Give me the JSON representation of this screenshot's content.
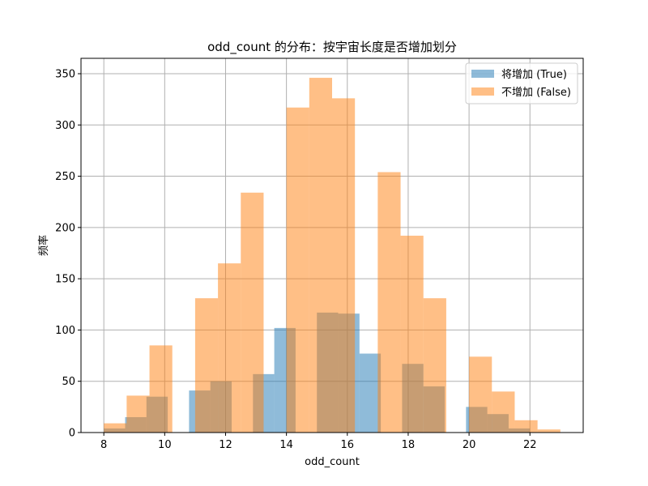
{
  "chart_data": {
    "type": "bar",
    "title": "odd_count 的分布：按宇宙长度是否增加划分",
    "xlabel": "odd_count",
    "ylabel": "频率",
    "xlim": [
      7.25,
      23.75
    ],
    "ylim": [
      0,
      365
    ],
    "xticks": [
      8,
      10,
      12,
      14,
      16,
      18,
      20,
      22
    ],
    "yticks": [
      0,
      50,
      100,
      150,
      200,
      250,
      300,
      350
    ],
    "grid": true,
    "legend_position": "top-right",
    "series": [
      {
        "name": "将增加 (True)",
        "color": "#1f77b4",
        "opacity": 0.5,
        "bins": [
          {
            "x0": 8.0,
            "x1": 8.7,
            "value": 4
          },
          {
            "x0": 8.7,
            "x1": 9.4,
            "value": 15
          },
          {
            "x0": 9.4,
            "x1": 10.1,
            "value": 35
          },
          {
            "x0": 10.8,
            "x1": 11.5,
            "value": 41
          },
          {
            "x0": 11.5,
            "x1": 12.2,
            "value": 50
          },
          {
            "x0": 12.9,
            "x1": 13.6,
            "value": 57
          },
          {
            "x0": 13.6,
            "x1": 14.3,
            "value": 102
          },
          {
            "x0": 15.0,
            "x1": 15.7,
            "value": 117
          },
          {
            "x0": 15.7,
            "x1": 16.4,
            "value": 116
          },
          {
            "x0": 16.4,
            "x1": 17.1,
            "value": 77
          },
          {
            "x0": 17.8,
            "x1": 18.5,
            "value": 67
          },
          {
            "x0": 18.5,
            "x1": 19.2,
            "value": 45
          },
          {
            "x0": 19.9,
            "x1": 20.6,
            "value": 25
          },
          {
            "x0": 20.6,
            "x1": 21.3,
            "value": 18
          },
          {
            "x0": 21.3,
            "x1": 22.0,
            "value": 4
          }
        ]
      },
      {
        "name": "不增加 (False)",
        "color": "#ff7f0e",
        "opacity": 0.5,
        "bins": [
          {
            "x0": 8.0,
            "x1": 8.75,
            "value": 9
          },
          {
            "x0": 8.75,
            "x1": 9.5,
            "value": 36
          },
          {
            "x0": 9.5,
            "x1": 10.25,
            "value": 85
          },
          {
            "x0": 11.0,
            "x1": 11.75,
            "value": 131
          },
          {
            "x0": 11.75,
            "x1": 12.5,
            "value": 165
          },
          {
            "x0": 12.5,
            "x1": 13.25,
            "value": 234
          },
          {
            "x0": 14.0,
            "x1": 14.75,
            "value": 317
          },
          {
            "x0": 14.75,
            "x1": 15.5,
            "value": 346
          },
          {
            "x0": 15.5,
            "x1": 16.25,
            "value": 326
          },
          {
            "x0": 17.0,
            "x1": 17.75,
            "value": 254
          },
          {
            "x0": 17.75,
            "x1": 18.5,
            "value": 192
          },
          {
            "x0": 18.5,
            "x1": 19.25,
            "value": 131
          },
          {
            "x0": 20.0,
            "x1": 20.75,
            "value": 74
          },
          {
            "x0": 20.75,
            "x1": 21.5,
            "value": 40
          },
          {
            "x0": 21.5,
            "x1": 22.25,
            "value": 12
          },
          {
            "x0": 22.25,
            "x1": 23.0,
            "value": 3
          }
        ]
      }
    ]
  }
}
